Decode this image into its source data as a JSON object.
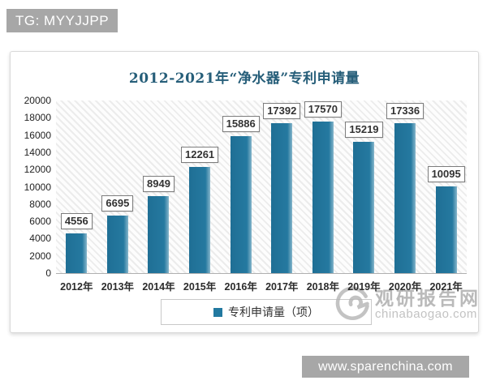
{
  "badges": {
    "top": "TG: MYYJJPP",
    "bottom": "www.sparenchina.com"
  },
  "watermark": {
    "logo": "swirl-logo",
    "site_name": "观研报告网",
    "site_domain": "chinabaogao.com"
  },
  "chart_data": {
    "type": "bar",
    "title": "2012-2021年“净水器”专利申请量",
    "categories": [
      "2012年",
      "2013年",
      "2014年",
      "2015年",
      "2016年",
      "2017年",
      "2018年",
      "2019年",
      "2020年",
      "2021年"
    ],
    "values": [
      4556,
      6695,
      8949,
      12261,
      15886,
      17392,
      17570,
      15219,
      17336,
      10095
    ],
    "legend": [
      "专利申请量（项）"
    ],
    "legend_position": "bottom",
    "ylim": [
      0,
      20000
    ],
    "ytick_step": 2000,
    "grid": false,
    "data_labels": true,
    "colors": {
      "bar": "#2279a0",
      "bar_highlight": "#86b6cb",
      "title": "#265e79",
      "hatch_background": "#ececec"
    }
  }
}
